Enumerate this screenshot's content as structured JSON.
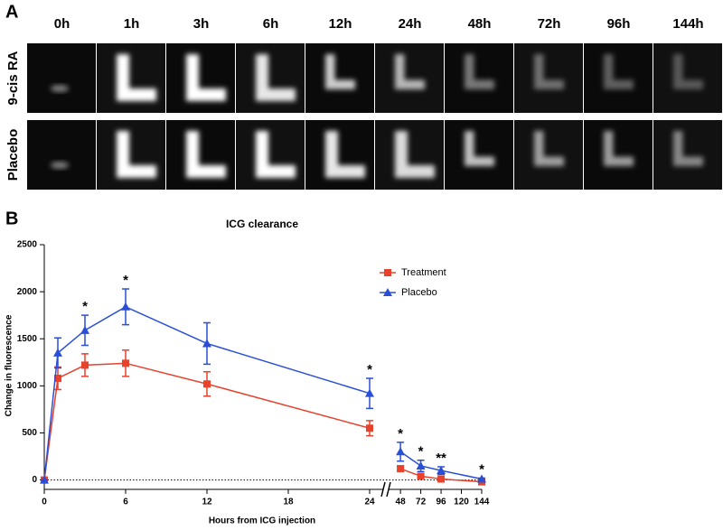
{
  "panel_a": {
    "label": "A",
    "times": [
      "0h",
      "1h",
      "3h",
      "6h",
      "12h",
      "24h",
      "48h",
      "72h",
      "96h",
      "144h"
    ],
    "rows": [
      "9-cis RA",
      "Placebo"
    ]
  },
  "chart_data": {
    "type": "line",
    "panel_label": "B",
    "title": "ICG clearance",
    "x_label": "Hours from ICG injection",
    "y_label": "Change in fluorescence",
    "x": [
      0,
      1,
      3,
      6,
      12,
      24,
      48,
      72,
      96,
      144
    ],
    "series": [
      {
        "name": "Treatment",
        "color": "#e8412c",
        "marker": "square",
        "values": [
          0,
          1080,
          1220,
          1240,
          1020,
          550,
          120,
          40,
          10,
          -20
        ],
        "errors": [
          0,
          120,
          120,
          140,
          130,
          80,
          30,
          20,
          10,
          10
        ]
      },
      {
        "name": "Placebo",
        "color": "#2a4fd6",
        "marker": "triangle",
        "values": [
          0,
          1350,
          1590,
          1840,
          1450,
          920,
          300,
          150,
          100,
          10
        ],
        "errors": [
          0,
          160,
          160,
          190,
          220,
          160,
          100,
          60,
          40,
          10
        ]
      }
    ],
    "x_segments": [
      {
        "xlim": [
          0,
          25
        ],
        "xticks": [
          0,
          6,
          12,
          18,
          24
        ]
      },
      {
        "xlim": [
          34,
          144
        ],
        "xticks": [
          48,
          72,
          96,
          120,
          144
        ]
      }
    ],
    "ylim": [
      -100,
      2500
    ],
    "yticks": [
      0,
      500,
      1000,
      1500,
      2000,
      2500
    ],
    "annotations": [
      {
        "x": 3,
        "text": "*"
      },
      {
        "x": 6,
        "text": "*"
      },
      {
        "x": 24,
        "text": "*"
      },
      {
        "x": 48,
        "text": "*"
      },
      {
        "x": 72,
        "text": "*"
      },
      {
        "x": 96,
        "text": "**"
      },
      {
        "x": 144,
        "text": "*"
      }
    ],
    "legend": "upper right"
  }
}
